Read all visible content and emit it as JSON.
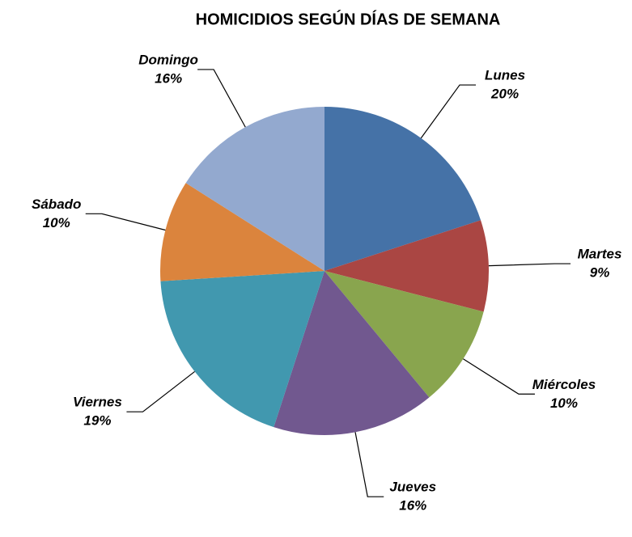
{
  "chart_data": {
    "type": "pie",
    "title": "HOMICIDIOS SEGÚN DÍAS DE SEMANA",
    "categories": [
      "Lunes",
      "Martes",
      "Miércoles",
      "Jueves",
      "Viernes",
      "Sábado",
      "Domingo"
    ],
    "values": [
      20,
      9,
      10,
      16,
      19,
      10,
      16
    ],
    "value_labels": [
      "20%",
      "9%",
      "10%",
      "16%",
      "19%",
      "10%",
      "16%"
    ],
    "colors": [
      "#4572a7",
      "#aa4643",
      "#89a54e",
      "#71588f",
      "#4198af",
      "#db843d",
      "#93a9cf"
    ]
  }
}
